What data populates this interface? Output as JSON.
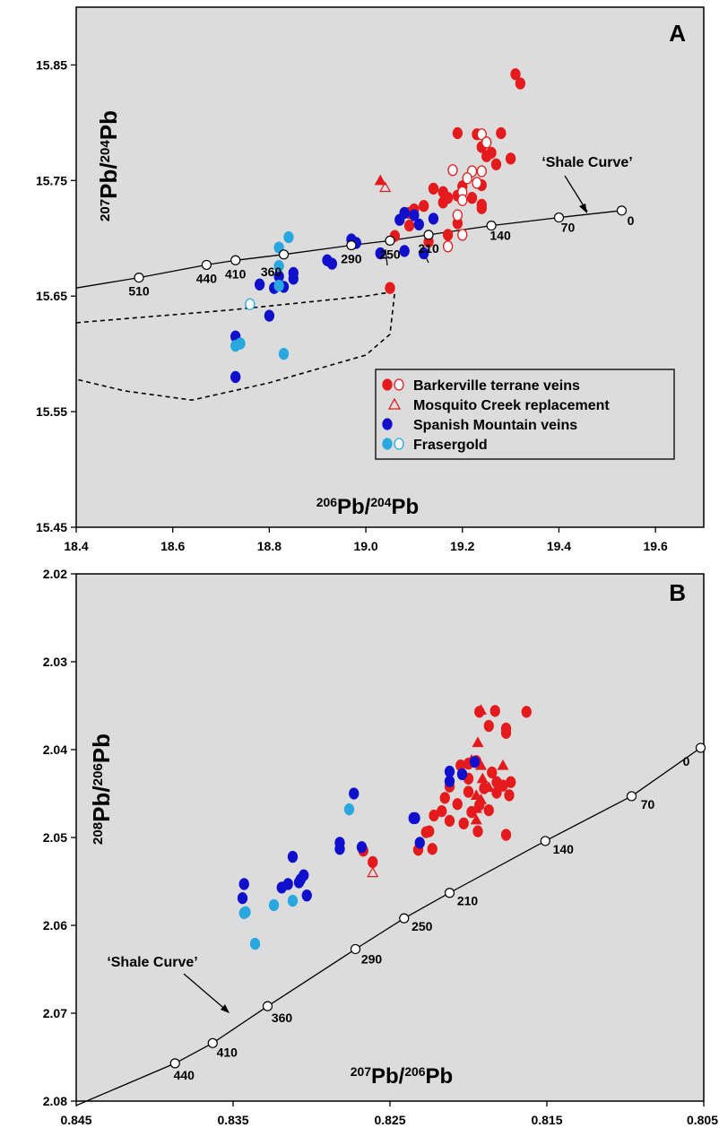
{
  "chart_data": [
    {
      "type": "scatter",
      "panel_label": "A",
      "xlabel": {
        "sup": "206",
        "main": "Pb/",
        "sup2": "204",
        "main2": "Pb"
      },
      "ylabel": {
        "sup": "207",
        "main": "Pb/",
        "sup2": "204",
        "main2": "Pb"
      },
      "xlim": [
        18.4,
        19.7
      ],
      "ylim": [
        15.45,
        15.9
      ],
      "xticks": [
        "18.4",
        "18.6",
        "18.8",
        "19.0",
        "19.2",
        "19.4",
        "19.6"
      ],
      "yticks": [
        "15.45",
        "15.55",
        "15.65",
        "15.75",
        "15.85"
      ],
      "grid": false,
      "legend_position": "lower-right",
      "legend": [
        {
          "label": "Barkerville terrane veins",
          "symbols": [
            "filled-red",
            "open-red"
          ]
        },
        {
          "label": "Mosquito Creek replacement",
          "symbols": [
            "open-red-triangle"
          ]
        },
        {
          "label": "Spanish Mountain veins",
          "symbols": [
            "filled-blue"
          ]
        },
        {
          "label": "Frasergold",
          "symbols": [
            "filled-cyan",
            "open-cyan"
          ]
        }
      ],
      "curve_annotation": "‘Shale Curve’",
      "shale_curve": {
        "points": [
          {
            "x": 18.53,
            "y": 15.666,
            "label": "510"
          },
          {
            "x": 18.67,
            "y": 15.677,
            "label": "440"
          },
          {
            "x": 18.73,
            "y": 15.681,
            "label": "410"
          },
          {
            "x": 18.83,
            "y": 15.686,
            "label": "360"
          },
          {
            "x": 18.97,
            "y": 15.694,
            "label": "290"
          },
          {
            "x": 19.05,
            "y": 15.698,
            "label": "250"
          },
          {
            "x": 19.13,
            "y": 15.703,
            "label": "210"
          },
          {
            "x": 19.26,
            "y": 15.711,
            "label": "140"
          },
          {
            "x": 19.4,
            "y": 15.718,
            "label": "70"
          },
          {
            "x": 19.53,
            "y": 15.724,
            "label": "0"
          }
        ],
        "line_start": {
          "x": 18.4,
          "y": 15.657
        }
      },
      "field_outline": [
        [
          18.4,
          15.627
        ],
        [
          18.72,
          15.638
        ],
        [
          19.0,
          15.65
        ],
        [
          19.06,
          15.654
        ],
        [
          19.05,
          15.617
        ],
        [
          19.0,
          15.599
        ],
        [
          18.8,
          15.575
        ],
        [
          18.64,
          15.56
        ],
        [
          18.5,
          15.568
        ],
        [
          18.4,
          15.578
        ]
      ],
      "series": [
        {
          "name": "Barkerville terrane veins",
          "marker": "filled-circle",
          "color": "#e41a1c",
          "points": [
            [
              19.31,
              15.842
            ],
            [
              19.32,
              15.834
            ],
            [
              19.19,
              15.791
            ],
            [
              19.23,
              15.79
            ],
            [
              19.28,
              15.791
            ],
            [
              19.24,
              15.779
            ],
            [
              19.26,
              15.774
            ],
            [
              19.25,
              15.771
            ],
            [
              19.3,
              15.769
            ],
            [
              19.27,
              15.764
            ],
            [
              19.14,
              15.743
            ],
            [
              19.16,
              15.74
            ],
            [
              19.2,
              15.745
            ],
            [
              19.24,
              15.746
            ],
            [
              19.19,
              15.737
            ],
            [
              19.17,
              15.735
            ],
            [
              19.22,
              15.735
            ],
            [
              19.12,
              15.728
            ],
            [
              19.1,
              15.725
            ],
            [
              19.09,
              15.722
            ],
            [
              19.16,
              15.731
            ],
            [
              19.24,
              15.729
            ],
            [
              19.24,
              15.726
            ],
            [
              19.09,
              15.711
            ],
            [
              19.17,
              15.703
            ],
            [
              19.19,
              15.713
            ],
            [
              19.13,
              15.697
            ],
            [
              19.06,
              15.702
            ],
            [
              19.05,
              15.657
            ]
          ]
        },
        {
          "name": "Barkerville terrane veins (open)",
          "marker": "open-circle",
          "color": "#e41a1c",
          "points": [
            [
              19.24,
              15.79
            ],
            [
              19.25,
              15.783
            ],
            [
              19.18,
              15.759
            ],
            [
              19.22,
              15.758
            ],
            [
              19.24,
              15.758
            ],
            [
              19.21,
              15.752
            ],
            [
              19.23,
              15.748
            ],
            [
              19.2,
              15.74
            ],
            [
              19.2,
              15.733
            ],
            [
              19.19,
              15.72
            ],
            [
              19.2,
              15.703
            ],
            [
              19.17,
              15.693
            ]
          ]
        },
        {
          "name": "Mosquito Creek replacement",
          "marker": "open-triangle",
          "color": "#e41a1c",
          "points": [
            [
              19.04,
              15.744
            ]
          ]
        },
        {
          "name": "Mosquito Creek replacement (filled)",
          "marker": "filled-triangle",
          "color": "#e41a1c",
          "points": [
            [
              19.03,
              15.75
            ]
          ]
        },
        {
          "name": "Spanish Mountain veins",
          "marker": "filled-circle",
          "color": "#1010cc",
          "points": [
            [
              19.08,
              15.722
            ],
            [
              19.1,
              15.72
            ],
            [
              19.07,
              15.716
            ],
            [
              19.11,
              15.712
            ],
            [
              19.14,
              15.717
            ],
            [
              18.97,
              15.699
            ],
            [
              18.98,
              15.696
            ],
            [
              19.03,
              15.687
            ],
            [
              19.08,
              15.689
            ],
            [
              19.12,
              15.687
            ],
            [
              18.92,
              15.681
            ],
            [
              18.93,
              15.678
            ],
            [
              18.82,
              15.667
            ],
            [
              18.85,
              15.665
            ],
            [
              18.85,
              15.67
            ],
            [
              18.78,
              15.66
            ],
            [
              18.83,
              15.658
            ],
            [
              18.81,
              15.657
            ],
            [
              18.8,
              15.633
            ],
            [
              18.73,
              15.615
            ],
            [
              18.73,
              15.58
            ]
          ]
        },
        {
          "name": "Frasergold",
          "marker": "filled-circle",
          "color": "#29a8e0",
          "points": [
            [
              18.84,
              15.701
            ],
            [
              18.82,
              15.692
            ],
            [
              18.82,
              15.676
            ],
            [
              18.82,
              15.659
            ],
            [
              18.74,
              15.609
            ],
            [
              18.73,
              15.607
            ],
            [
              18.83,
              15.6
            ]
          ]
        },
        {
          "name": "Frasergold (open)",
          "marker": "open-circle",
          "color": "#29a8e0",
          "points": [
            [
              18.76,
              15.643
            ]
          ]
        }
      ]
    },
    {
      "type": "scatter",
      "panel_label": "B",
      "xlabel": {
        "sup": "207",
        "main": "Pb/",
        "sup2": "206",
        "main2": "Pb"
      },
      "ylabel": {
        "sup": "208",
        "main": "Pb/",
        "sup2": "206",
        "main2": "Pb"
      },
      "xlim": [
        0.845,
        0.805
      ],
      "ylim": [
        2.08,
        2.02
      ],
      "xticks": [
        "0.845",
        "0.835",
        "0.825",
        "0.815",
        "0.805"
      ],
      "yticks": [
        "2.02",
        "2.03",
        "2.04",
        "2.05",
        "2.06",
        "2.07",
        "2.08"
      ],
      "grid": false,
      "curve_annotation": "‘Shale Curve’",
      "shale_curve": {
        "points": [
          {
            "x": 0.8387,
            "y": 2.0757,
            "label": "440"
          },
          {
            "x": 0.8363,
            "y": 2.0734,
            "label": "410"
          },
          {
            "x": 0.8328,
            "y": 2.0692,
            "label": "360"
          },
          {
            "x": 0.8272,
            "y": 2.0627,
            "label": "290"
          },
          {
            "x": 0.8241,
            "y": 2.0592,
            "label": "250"
          },
          {
            "x": 0.8212,
            "y": 2.0563,
            "label": "210"
          },
          {
            "x": 0.8151,
            "y": 2.0504,
            "label": "140"
          },
          {
            "x": 0.8096,
            "y": 2.0453,
            "label": "70"
          },
          {
            "x": 0.8052,
            "y": 2.0398,
            "label": "0"
          }
        ],
        "line_start": {
          "x": 0.845,
          "y": 2.0805
        }
      },
      "series": [
        {
          "name": "Barkerville terrane veins",
          "marker": "filled-circle",
          "color": "#e41a1c",
          "points": [
            [
              0.8183,
              2.0356
            ],
            [
              0.8193,
              2.0357
            ],
            [
              0.8163,
              2.0357
            ],
            [
              0.8187,
              2.0373
            ],
            [
              0.8176,
              2.0376
            ],
            [
              0.8176,
              2.0381
            ],
            [
              0.8195,
              2.0413
            ],
            [
              0.8205,
              2.0418
            ],
            [
              0.8185,
              2.0426
            ],
            [
              0.8182,
              2.0437
            ],
            [
              0.8178,
              2.0441
            ],
            [
              0.8182,
              2.0449
            ],
            [
              0.8173,
              2.0437
            ],
            [
              0.8174,
              2.0452
            ],
            [
              0.819,
              2.0444
            ],
            [
              0.82,
              2.0433
            ],
            [
              0.82,
              2.0448
            ],
            [
              0.8212,
              2.0442
            ],
            [
              0.8215,
              2.0455
            ],
            [
              0.8207,
              2.0462
            ],
            [
              0.8193,
              2.0463
            ],
            [
              0.8217,
              2.047
            ],
            [
              0.8198,
              2.0471
            ],
            [
              0.8187,
              2.0469
            ],
            [
              0.8222,
              2.0475
            ],
            [
              0.8212,
              2.0481
            ],
            [
              0.8203,
              2.0484
            ],
            [
              0.8227,
              2.0494
            ],
            [
              0.8225,
              2.0493
            ],
            [
              0.8194,
              2.0493
            ],
            [
              0.8176,
              2.0497
            ],
            [
              0.8232,
              2.0514
            ],
            [
              0.8223,
              2.0513
            ],
            [
              0.8267,
              2.0515
            ],
            [
              0.8261,
              2.0528
            ],
            [
              0.82,
              2.0416
            ]
          ]
        },
        {
          "name": "Mosquito Creek replacement",
          "marker": "filled-triangle",
          "color": "#e41a1c",
          "points": [
            [
              0.8192,
              2.0355
            ],
            [
              0.8194,
              2.0392
            ],
            [
              0.8198,
              2.0412
            ],
            [
              0.8192,
              2.0418
            ],
            [
              0.8191,
              2.0433
            ],
            [
              0.8187,
              2.0443
            ],
            [
              0.8195,
              2.0452
            ],
            [
              0.8192,
              2.0457
            ],
            [
              0.8195,
              2.0467
            ],
            [
              0.8195,
              2.048
            ],
            [
              0.8178,
              2.0418
            ]
          ]
        },
        {
          "name": "Mosquito Creek replacement (open)",
          "marker": "open-triangle",
          "color": "#e41a1c",
          "points": [
            [
              0.8261,
              2.054
            ]
          ]
        },
        {
          "name": "Spanish Mountain veins",
          "marker": "filled-circle",
          "color": "#1010cc",
          "points": [
            [
              0.8212,
              2.0425
            ],
            [
              0.8204,
              2.0428
            ],
            [
              0.8196,
              2.0414
            ],
            [
              0.8212,
              2.0436
            ],
            [
              0.8234,
              2.0478
            ],
            [
              0.8235,
              2.0478
            ],
            [
              0.8231,
              2.0506
            ],
            [
              0.8273,
              2.045
            ],
            [
              0.8282,
              2.0506
            ],
            [
              0.8282,
              2.0513
            ],
            [
              0.8268,
              2.0511
            ],
            [
              0.8312,
              2.0522
            ],
            [
              0.8305,
              2.0543
            ],
            [
              0.8307,
              2.0548
            ],
            [
              0.8315,
              2.0553
            ],
            [
              0.8308,
              2.0551
            ],
            [
              0.8343,
              2.0553
            ],
            [
              0.8319,
              2.0557
            ],
            [
              0.8303,
              2.0566
            ],
            [
              0.8344,
              2.0569
            ]
          ]
        },
        {
          "name": "Frasergold",
          "marker": "filled-circle",
          "color": "#29a8e0",
          "points": [
            [
              0.8276,
              2.0468
            ],
            [
              0.8312,
              2.0572
            ],
            [
              0.8324,
              2.0577
            ],
            [
              0.8342,
              2.0585
            ],
            [
              0.8343,
              2.0586
            ],
            [
              0.8336,
              2.0621
            ]
          ]
        }
      ]
    }
  ]
}
